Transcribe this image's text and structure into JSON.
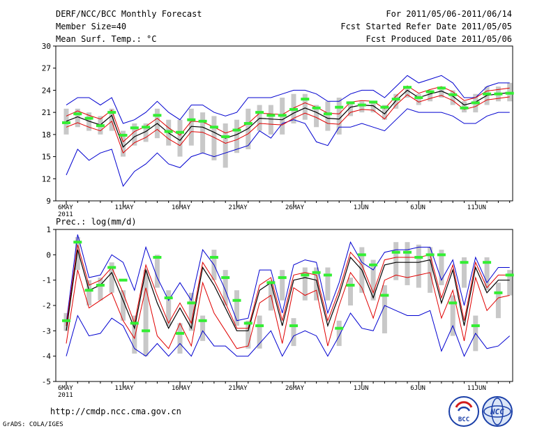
{
  "header": {
    "title": "DERF/NCC/BCC Monthly Forecast",
    "member_size": "Member Size=40",
    "variable1": "Mean Surf. Temp.: °C",
    "period": "For 2011/05/06-2011/06/14",
    "started": "Fcst Started Refer Date 2011/05/05",
    "produced": "Fcst Produced Date 2011/05/06"
  },
  "footer": {
    "url": "http://cmdp.ncc.cma.gov.cn",
    "grads": "GrADS: COLA/IGES",
    "logo_bcc": "BCC",
    "logo_ncc": "NCC"
  },
  "colors": {
    "mean": "#000000",
    "spread": "#e00000",
    "range": "#0000d0",
    "box": "#c8c8c8",
    "obs": "#33ee33"
  },
  "chart_data": [
    {
      "type": "line",
      "title": "Mean Surf. Temp.: °C",
      "x_ticks": [
        {
          "i": 0,
          "label": "6MAY",
          "sub": "2011"
        },
        {
          "i": 5,
          "label": "11MAY"
        },
        {
          "i": 10,
          "label": "16MAY"
        },
        {
          "i": 15,
          "label": "21MAY"
        },
        {
          "i": 20,
          "label": "26MAY"
        },
        {
          "i": 26,
          "label": "1JUN"
        },
        {
          "i": 31,
          "label": "6JUN"
        },
        {
          "i": 36,
          "label": "11JUN"
        }
      ],
      "ylim": [
        9,
        30
      ],
      "yticks": [
        9,
        12,
        15,
        18,
        21,
        24,
        27,
        30
      ],
      "n_days": 40,
      "series": [
        {
          "name": "mean",
          "values": [
            19.8,
            20.4,
            19.8,
            19.3,
            20.6,
            16.3,
            17.7,
            18.4,
            19.5,
            18.2,
            17.2,
            19.1,
            19.0,
            18.3,
            17.5,
            18.0,
            18.8,
            20.2,
            20.1,
            20.0,
            20.9,
            21.6,
            21.0,
            20.2,
            20.1,
            21.7,
            22.0,
            21.9,
            20.8,
            22.6,
            24.0,
            23.0,
            23.5,
            23.9,
            23.2,
            22.0,
            22.4,
            23.3,
            23.5,
            23.7
          ]
        },
        {
          "name": "upper",
          "values": [
            20.5,
            21.2,
            20.6,
            20.1,
            21.3,
            17.0,
            18.4,
            19.1,
            20.2,
            18.9,
            17.9,
            19.8,
            19.7,
            19.0,
            18.2,
            18.7,
            19.5,
            20.9,
            20.8,
            20.7,
            21.6,
            22.3,
            21.7,
            20.9,
            20.8,
            22.4,
            22.6,
            22.5,
            21.5,
            23.2,
            24.6,
            23.6,
            24.1,
            24.5,
            23.8,
            22.6,
            23.0,
            23.9,
            24.1,
            24.3
          ]
        },
        {
          "name": "lower",
          "values": [
            19.0,
            19.6,
            19.0,
            18.5,
            19.8,
            15.5,
            16.9,
            17.6,
            18.7,
            17.4,
            16.5,
            18.4,
            18.3,
            17.6,
            16.8,
            17.3,
            18.1,
            19.5,
            19.4,
            19.3,
            20.2,
            20.9,
            20.3,
            19.5,
            19.4,
            21.0,
            21.4,
            21.3,
            20.1,
            22.0,
            23.4,
            22.4,
            22.9,
            23.3,
            22.6,
            21.4,
            21.8,
            22.7,
            22.9,
            23.1
          ]
        },
        {
          "name": "max",
          "values": [
            22.0,
            23.0,
            23.0,
            22.0,
            23.0,
            19.5,
            20.0,
            21.0,
            22.5,
            21.0,
            20.0,
            22.0,
            22.0,
            21.0,
            20.5,
            21.0,
            23.0,
            23.0,
            23.0,
            23.5,
            24.0,
            24.0,
            23.5,
            22.5,
            22.5,
            23.5,
            24.0,
            24.0,
            23.0,
            24.5,
            26.0,
            25.0,
            25.5,
            26.0,
            25.0,
            23.0,
            23.0,
            24.5,
            25.0,
            25.0
          ]
        },
        {
          "name": "min",
          "values": [
            12.5,
            16.0,
            14.5,
            15.5,
            16.0,
            11.0,
            13.0,
            14.0,
            15.5,
            14.0,
            13.5,
            15.0,
            15.5,
            15.0,
            15.5,
            16.0,
            16.5,
            18.5,
            17.5,
            19.5,
            20.0,
            19.5,
            17.0,
            16.5,
            19.0,
            19.0,
            19.5,
            19.0,
            18.5,
            20.0,
            21.5,
            21.0,
            21.0,
            21.0,
            20.5,
            19.5,
            19.5,
            20.5,
            21.0,
            21.0
          ]
        },
        {
          "name": "obs",
          "values": [
            19.6,
            20.8,
            20.2,
            19.2,
            21.0,
            17.9,
            18.9,
            19.0,
            20.6,
            18.4,
            18.3,
            20.0,
            19.8,
            19.0,
            17.7,
            18.6,
            19.5,
            21.0,
            20.6,
            20.6,
            21.4,
            22.8,
            21.6,
            20.8,
            21.7,
            22.3,
            22.0,
            22.4,
            21.7,
            22.8,
            24.4,
            23.0,
            23.8,
            24.3,
            23.4,
            21.6,
            22.3,
            23.5,
            23.5,
            23.6
          ]
        },
        {
          "name": "box_top",
          "values": [
            21.5,
            21.5,
            21.0,
            20.5,
            21.5,
            18.5,
            19.5,
            19.5,
            21.5,
            20.0,
            20.0,
            21.5,
            21.0,
            20.5,
            19.5,
            20.0,
            21.5,
            22.0,
            22.0,
            23.0,
            23.5,
            23.5,
            22.0,
            22.5,
            23.0,
            22.5,
            22.5,
            22.5,
            22.0,
            23.5,
            24.5,
            23.5,
            24.0,
            24.5,
            24.0,
            22.5,
            23.5,
            24.5,
            24.5,
            25.0
          ]
        },
        {
          "name": "box_bottom",
          "values": [
            18.0,
            19.0,
            18.5,
            18.0,
            18.5,
            15.0,
            16.5,
            17.0,
            17.5,
            16.5,
            15.0,
            16.5,
            15.5,
            14.5,
            13.5,
            15.5,
            16.0,
            18.5,
            18.0,
            18.0,
            19.5,
            20.0,
            19.0,
            18.5,
            18.0,
            20.5,
            21.0,
            21.0,
            20.0,
            21.5,
            23.0,
            22.0,
            22.5,
            23.0,
            22.0,
            21.0,
            21.0,
            22.0,
            22.5,
            22.5
          ]
        }
      ]
    },
    {
      "type": "line",
      "title": "Prec.: log(mm/d)",
      "x_ticks": [
        {
          "i": 0,
          "label": "6MAY",
          "sub": "2011"
        },
        {
          "i": 5,
          "label": "11MAY"
        },
        {
          "i": 10,
          "label": "16MAY"
        },
        {
          "i": 15,
          "label": "21MAY"
        },
        {
          "i": 20,
          "label": "26MAY"
        },
        {
          "i": 26,
          "label": "1JUN"
        },
        {
          "i": 31,
          "label": "6JUN"
        },
        {
          "i": 36,
          "label": "11JUN"
        }
      ],
      "ylim": [
        -5,
        1
      ],
      "yticks": [
        -5,
        -4,
        -3,
        -2,
        -1,
        0,
        1
      ],
      "n_days": 40,
      "series": [
        {
          "name": "mean",
          "values": [
            -3.0,
            0.2,
            -1.4,
            -1.2,
            -0.7,
            -1.8,
            -2.9,
            -0.6,
            -1.9,
            -2.9,
            -2.1,
            -2.9,
            -0.5,
            -1.2,
            -2.1,
            -3.0,
            -3.0,
            -1.4,
            -1.1,
            -2.8,
            -1.0,
            -0.9,
            -1.0,
            -2.8,
            -1.6,
            -0.1,
            -0.6,
            -1.7,
            -0.4,
            -0.3,
            -0.3,
            -0.3,
            -0.2,
            -1.9,
            -0.6,
            -2.8,
            -0.5,
            -1.5,
            -1.0,
            -1.0
          ]
        },
        {
          "name": "upper",
          "values": [
            -2.8,
            0.4,
            -1.2,
            -1.0,
            -0.5,
            -1.5,
            -2.7,
            -0.4,
            -1.6,
            -2.7,
            -1.9,
            -2.7,
            -0.3,
            -1.0,
            -1.9,
            -2.9,
            -2.9,
            -1.2,
            -0.9,
            -2.6,
            -0.8,
            -0.7,
            -0.8,
            -2.6,
            -1.4,
            0.1,
            -0.4,
            -1.5,
            -0.2,
            -0.1,
            -0.1,
            -0.1,
            0.0,
            -1.7,
            -0.4,
            -2.6,
            -0.3,
            -1.3,
            -0.8,
            -0.8
          ]
        },
        {
          "name": "lower",
          "values": [
            -3.5,
            -0.6,
            -2.1,
            -1.8,
            -1.5,
            -2.6,
            -3.3,
            -1.3,
            -3.2,
            -3.7,
            -2.7,
            -3.6,
            -1.1,
            -2.3,
            -3.0,
            -3.7,
            -3.6,
            -1.9,
            -1.6,
            -3.5,
            -1.3,
            -1.6,
            -1.4,
            -3.6,
            -2.0,
            -0.7,
            -1.3,
            -2.5,
            -1.0,
            -0.8,
            -0.9,
            -0.8,
            -0.7,
            -2.5,
            -1.4,
            -3.4,
            -0.9,
            -2.2,
            -1.7,
            -1.6
          ]
        },
        {
          "name": "max",
          "values": [
            -2.7,
            0.8,
            -0.9,
            -0.8,
            0.0,
            -0.3,
            -1.4,
            0.3,
            -0.9,
            -1.8,
            -1.1,
            -1.8,
            0.2,
            -0.4,
            -1.4,
            -2.6,
            -2.5,
            -0.6,
            -0.6,
            -2.3,
            -0.4,
            -0.2,
            -0.3,
            -2.3,
            -1.1,
            0.5,
            -0.3,
            -0.6,
            0.1,
            0.2,
            0.2,
            0.3,
            0.3,
            -1.0,
            -0.2,
            -2.0,
            -0.1,
            -1.1,
            -0.5,
            -0.5
          ]
        },
        {
          "name": "min",
          "values": [
            -4.0,
            -2.4,
            -3.2,
            -3.1,
            -2.5,
            -2.8,
            -3.7,
            -4.0,
            -3.5,
            -4.0,
            -3.5,
            -4.0,
            -3.0,
            -3.6,
            -3.6,
            -4.0,
            -4.0,
            -3.5,
            -3.0,
            -4.0,
            -3.2,
            -3.0,
            -3.2,
            -4.0,
            -3.2,
            -2.3,
            -2.9,
            -3.0,
            -2.0,
            -2.2,
            -2.4,
            -2.4,
            -2.2,
            -3.8,
            -2.8,
            -4.0,
            -3.1,
            -3.7,
            -3.6,
            -3.2
          ]
        },
        {
          "name": "obs",
          "values": [
            -2.6,
            0.5,
            -1.4,
            -1.2,
            -0.5,
            -1.0,
            -2.7,
            -3.0,
            -0.1,
            -1.7,
            -3.1,
            -1.9,
            -2.6,
            -0.1,
            -0.9,
            -1.8,
            -2.7,
            -2.8,
            -1.1,
            -0.9,
            -2.8,
            -0.8,
            -0.7,
            -0.8,
            -2.9,
            -1.2,
            0.0,
            -0.4,
            -1.6,
            0.1,
            0.1,
            -0.1,
            0.0,
            0.0,
            -1.9,
            -0.3,
            -2.8,
            -0.3,
            -1.5,
            -0.8
          ]
        },
        {
          "name": "box_top",
          "values": [
            -2.3,
            0.7,
            -1.0,
            -0.9,
            -0.3,
            -1.4,
            -2.4,
            -0.6,
            0.0,
            -1.4,
            -2.7,
            -1.5,
            -2.4,
            0.2,
            -0.6,
            -1.4,
            -2.6,
            -2.4,
            -1.0,
            -0.6,
            -2.5,
            -0.5,
            -0.5,
            -0.5,
            -2.6,
            -0.9,
            0.3,
            -0.2,
            -1.2,
            0.5,
            0.5,
            0.4,
            0.3,
            0.2,
            -1.6,
            -0.1,
            -2.4,
            -0.1,
            -1.1,
            -0.6
          ]
        },
        {
          "name": "box_bottom",
          "values": [
            -3.0,
            -0.6,
            -2.0,
            -1.8,
            -1.5,
            -2.6,
            -3.9,
            -4.0,
            -1.3,
            -2.8,
            -3.9,
            -3.0,
            -3.4,
            -1.0,
            -2.0,
            -2.8,
            -3.7,
            -3.7,
            -2.2,
            -1.8,
            -3.6,
            -1.8,
            -1.8,
            -1.8,
            -3.6,
            -2.0,
            -1.5,
            -1.8,
            -3.1,
            -1.0,
            -1.2,
            -1.3,
            -1.5,
            -1.2,
            -3.2,
            -1.3,
            -3.8,
            -1.4,
            -2.5,
            -1.6
          ]
        }
      ]
    }
  ]
}
